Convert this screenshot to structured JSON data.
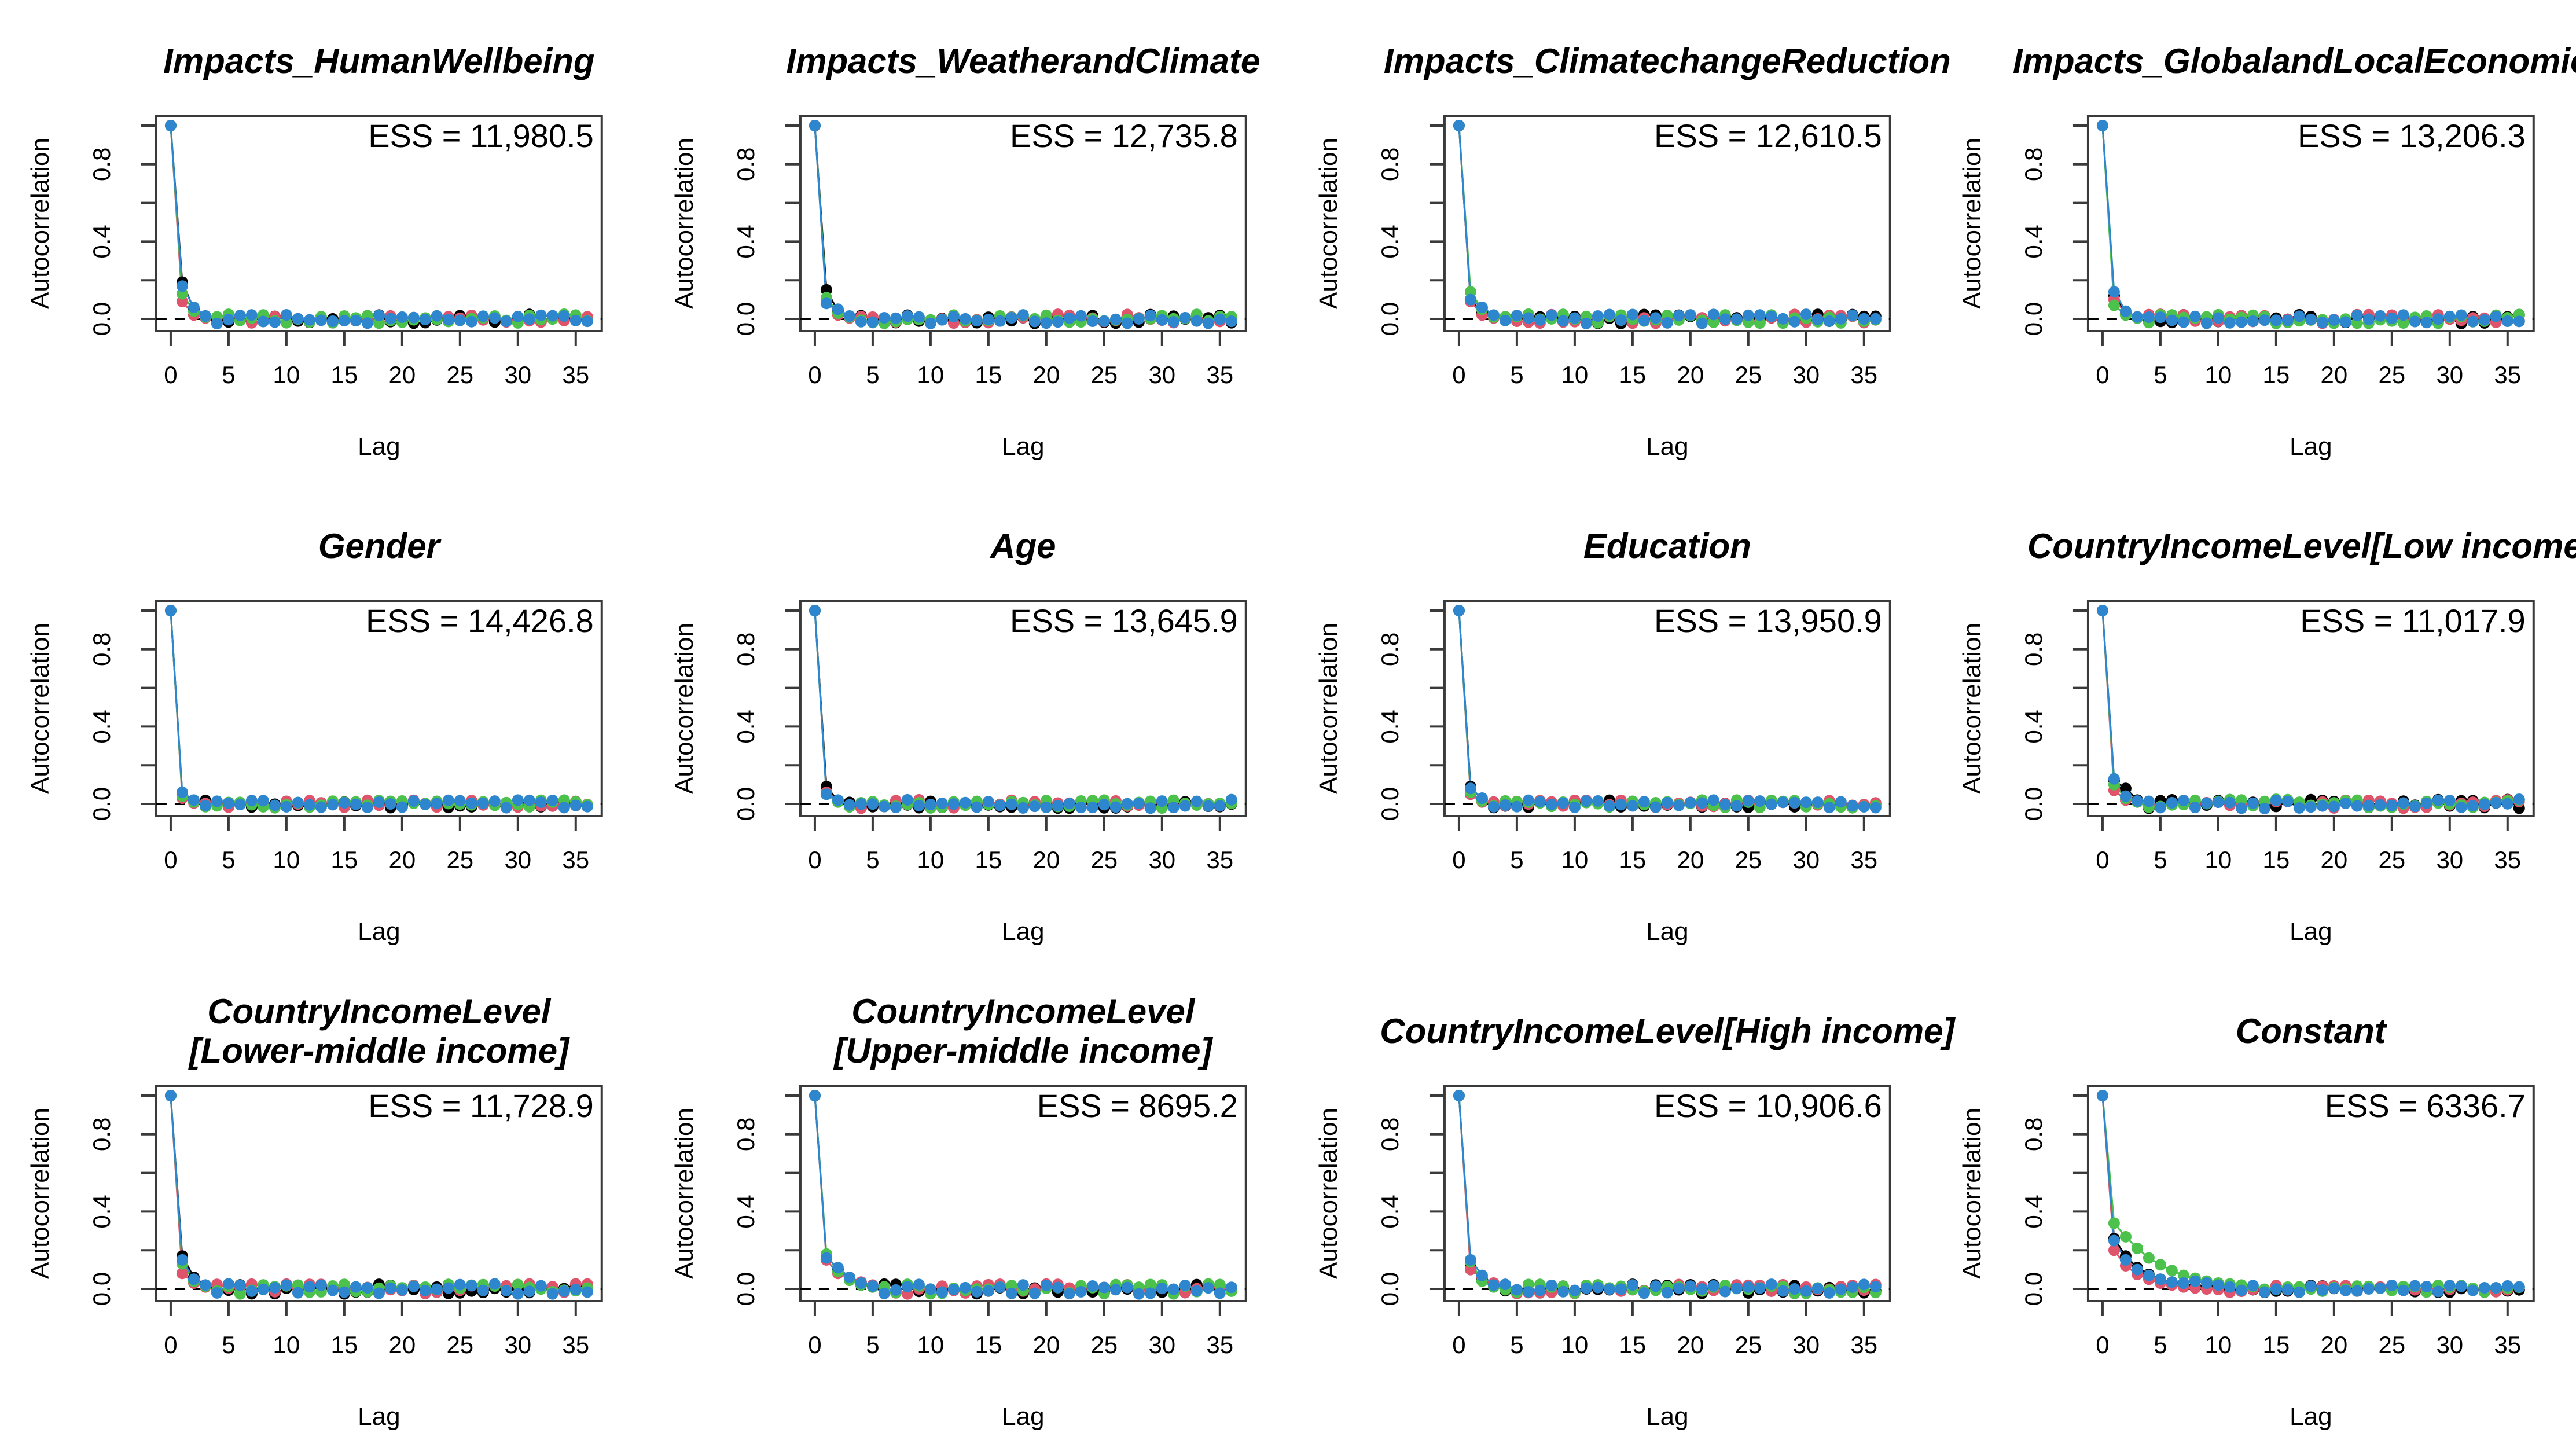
{
  "figure": {
    "kind": "MCMC autocorrelation diagnostics grid",
    "rows": 3,
    "cols": 4,
    "background": "#ffffff",
    "n_chains": 4
  },
  "style_colors": {
    "chain_black": "#000000",
    "chain_red": "#DF536B",
    "chain_green": "#4CC14C",
    "chain_blue": "#2E87CE",
    "axis_stroke": "#3a3a3a",
    "zero_line": "#000000",
    "text": "#000000"
  },
  "axes": {
    "ylabel": "Autocorrelation",
    "xlabel": "Lag",
    "x_tick_values": [
      0,
      5,
      10,
      15,
      20,
      25,
      30,
      35
    ],
    "x_tick_labels": [
      "0",
      "5",
      "10",
      "15",
      "20",
      "25",
      "30",
      "35"
    ],
    "y_ticks": [
      {
        "v": 1.0,
        "label": ""
      },
      {
        "v": 0.8,
        "label": "0.8"
      },
      {
        "v": 0.6,
        "label": ""
      },
      {
        "v": 0.4,
        "label": "0.4"
      },
      {
        "v": 0.2,
        "label": ""
      },
      {
        "v": 0.0,
        "label": "0.0"
      }
    ],
    "ylim": [
      -0.06,
      1.06
    ],
    "xlim": [
      0,
      36
    ],
    "zero_line": {
      "y": 0,
      "style": "dashed"
    },
    "grid": "off",
    "legend": "none"
  },
  "chart_data": [
    {
      "type": "scatter",
      "title_lines": [
        "Impacts_HumanWellbeing"
      ],
      "ess_label": "ESS = 11,980.5",
      "ess_value": 11980.5,
      "n_lags": 37,
      "tail_sd": 0.024,
      "seed": 11,
      "series": [
        {
          "name": "chain-1",
          "color": "chain_black",
          "head": [
            1,
            0.19,
            0.05,
            0.015
          ]
        },
        {
          "name": "chain-2",
          "color": "chain_red",
          "head": [
            1,
            0.09,
            0.02,
            0.005
          ]
        },
        {
          "name": "chain-3",
          "color": "chain_green",
          "head": [
            1,
            0.13,
            0.04,
            0.01
          ]
        },
        {
          "name": "chain-4",
          "color": "chain_blue",
          "head": [
            1,
            0.17,
            0.06,
            0.015
          ]
        }
      ]
    },
    {
      "type": "scatter",
      "title_lines": [
        "Impacts_WeatherandClimate"
      ],
      "ess_label": "ESS = 12,735.8",
      "ess_value": 12735.8,
      "n_lags": 37,
      "tail_sd": 0.024,
      "seed": 12,
      "series": [
        {
          "name": "chain-1",
          "color": "chain_black",
          "head": [
            1,
            0.15,
            0.04,
            0.01
          ]
        },
        {
          "name": "chain-2",
          "color": "chain_red",
          "head": [
            1,
            0.1,
            0.02,
            0.005
          ]
        },
        {
          "name": "chain-3",
          "color": "chain_green",
          "head": [
            1,
            0.11,
            0.03,
            0.01
          ]
        },
        {
          "name": "chain-4",
          "color": "chain_blue",
          "head": [
            1,
            0.08,
            0.05,
            0.015
          ]
        }
      ]
    },
    {
      "type": "scatter",
      "title_lines": [
        "Impacts_ClimatechangeReduction"
      ],
      "ess_label": "ESS = 12,610.5",
      "ess_value": 12610.5,
      "n_lags": 37,
      "tail_sd": 0.024,
      "seed": 13,
      "series": [
        {
          "name": "chain-1",
          "color": "chain_black",
          "head": [
            1,
            0.1,
            0.03,
            0.01
          ]
        },
        {
          "name": "chain-2",
          "color": "chain_red",
          "head": [
            1,
            0.09,
            0.02,
            0.005
          ]
        },
        {
          "name": "chain-3",
          "color": "chain_green",
          "head": [
            1,
            0.14,
            0.05,
            0.01
          ]
        },
        {
          "name": "chain-4",
          "color": "chain_blue",
          "head": [
            1,
            0.1,
            0.06,
            0.02
          ]
        }
      ]
    },
    {
      "type": "scatter",
      "title_lines": [
        "Impacts_GlobalandLocalEconomies"
      ],
      "ess_label": "ESS = 13,206.3",
      "ess_value": 13206.3,
      "n_lags": 37,
      "tail_sd": 0.024,
      "seed": 14,
      "series": [
        {
          "name": "chain-1",
          "color": "chain_black",
          "head": [
            1,
            0.12,
            0.03,
            0.005
          ]
        },
        {
          "name": "chain-2",
          "color": "chain_red",
          "head": [
            1,
            0.1,
            0.03,
            0.01
          ]
        },
        {
          "name": "chain-3",
          "color": "chain_green",
          "head": [
            1,
            0.07,
            0.02,
            0.005
          ]
        },
        {
          "name": "chain-4",
          "color": "chain_blue",
          "head": [
            1,
            0.14,
            0.04,
            0.01
          ]
        }
      ]
    },
    {
      "type": "scatter",
      "title_lines": [
        "Gender"
      ],
      "ess_label": "ESS = 14,426.8",
      "ess_value": 14426.8,
      "n_lags": 37,
      "tail_sd": 0.02,
      "seed": 15,
      "series": [
        {
          "name": "chain-1",
          "color": "chain_black",
          "head": [
            1,
            0.05,
            0.01
          ]
        },
        {
          "name": "chain-2",
          "color": "chain_red",
          "head": [
            1,
            0.03,
            0.005
          ]
        },
        {
          "name": "chain-3",
          "color": "chain_green",
          "head": [
            1,
            0.04,
            0.01
          ]
        },
        {
          "name": "chain-4",
          "color": "chain_blue",
          "head": [
            1,
            0.06,
            0.02
          ]
        }
      ]
    },
    {
      "type": "scatter",
      "title_lines": [
        "Age"
      ],
      "ess_label": "ESS = 13,645.9",
      "ess_value": 13645.9,
      "n_lags": 37,
      "tail_sd": 0.022,
      "seed": 16,
      "series": [
        {
          "name": "chain-1",
          "color": "chain_black",
          "head": [
            1,
            0.09,
            0.015
          ]
        },
        {
          "name": "chain-2",
          "color": "chain_red",
          "head": [
            1,
            0.06,
            0.01
          ]
        },
        {
          "name": "chain-3",
          "color": "chain_green",
          "head": [
            1,
            0.05,
            0.01
          ]
        },
        {
          "name": "chain-4",
          "color": "chain_blue",
          "head": [
            1,
            0.05,
            0.02
          ]
        }
      ]
    },
    {
      "type": "scatter",
      "title_lines": [
        "Education"
      ],
      "ess_label": "ESS = 13,950.9",
      "ess_value": 13950.9,
      "n_lags": 37,
      "tail_sd": 0.02,
      "seed": 17,
      "series": [
        {
          "name": "chain-1",
          "color": "chain_black",
          "head": [
            1,
            0.09,
            0.02
          ]
        },
        {
          "name": "chain-2",
          "color": "chain_red",
          "head": [
            1,
            0.05,
            0.01
          ]
        },
        {
          "name": "chain-3",
          "color": "chain_green",
          "head": [
            1,
            0.06,
            0.015
          ]
        },
        {
          "name": "chain-4",
          "color": "chain_blue",
          "head": [
            1,
            0.08,
            0.03
          ]
        }
      ]
    },
    {
      "type": "scatter",
      "title_lines": [
        "CountryIncomeLevel[Low income]"
      ],
      "ess_label": "ESS = 11,017.9",
      "ess_value": 11017.9,
      "n_lags": 37,
      "tail_sd": 0.024,
      "seed": 18,
      "series": [
        {
          "name": "chain-1",
          "color": "chain_black",
          "head": [
            1,
            0.12,
            0.08,
            0.02
          ]
        },
        {
          "name": "chain-2",
          "color": "chain_red",
          "head": [
            1,
            0.07,
            0.02,
            0.01
          ]
        },
        {
          "name": "chain-3",
          "color": "chain_green",
          "head": [
            1,
            0.1,
            0.03,
            0.01
          ]
        },
        {
          "name": "chain-4",
          "color": "chain_blue",
          "head": [
            1,
            0.13,
            0.04,
            0.015
          ]
        }
      ]
    },
    {
      "type": "scatter",
      "title_lines": [
        "CountryIncomeLevel",
        "[Lower-middle income]"
      ],
      "ess_label": "ESS = 11,728.9",
      "ess_value": 11728.9,
      "n_lags": 37,
      "tail_sd": 0.026,
      "seed": 19,
      "series": [
        {
          "name": "chain-1",
          "color": "chain_black",
          "head": [
            1,
            0.17,
            0.06,
            0.02
          ]
        },
        {
          "name": "chain-2",
          "color": "chain_red",
          "head": [
            1,
            0.08,
            0.03,
            0.01
          ]
        },
        {
          "name": "chain-3",
          "color": "chain_green",
          "head": [
            1,
            0.13,
            0.04,
            0.015
          ]
        },
        {
          "name": "chain-4",
          "color": "chain_blue",
          "head": [
            1,
            0.15,
            0.05,
            0.02
          ]
        }
      ]
    },
    {
      "type": "scatter",
      "title_lines": [
        "CountryIncomeLevel",
        "[Upper-middle income]"
      ],
      "ess_label": "ESS = 8695.2",
      "ess_value": 8695.2,
      "n_lags": 37,
      "tail_sd": 0.026,
      "seed": 20,
      "series": [
        {
          "name": "chain-1",
          "color": "chain_black",
          "head": [
            1,
            0.17,
            0.1,
            0.05,
            0.02,
            0.01
          ]
        },
        {
          "name": "chain-2",
          "color": "chain_red",
          "head": [
            1,
            0.15,
            0.08,
            0.06,
            0.035,
            0.02
          ]
        },
        {
          "name": "chain-3",
          "color": "chain_green",
          "head": [
            1,
            0.18,
            0.09,
            0.045,
            0.02,
            0.01
          ]
        },
        {
          "name": "chain-4",
          "color": "chain_blue",
          "head": [
            1,
            0.16,
            0.11,
            0.06,
            0.03,
            0.015
          ]
        }
      ]
    },
    {
      "type": "scatter",
      "title_lines": [
        "CountryIncomeLevel[High income]"
      ],
      "ess_label": "ESS = 10,906.6",
      "ess_value": 10906.6,
      "n_lags": 37,
      "tail_sd": 0.024,
      "seed": 21,
      "series": [
        {
          "name": "chain-1",
          "color": "chain_black",
          "head": [
            1,
            0.13,
            0.05,
            0.015
          ]
        },
        {
          "name": "chain-2",
          "color": "chain_red",
          "head": [
            1,
            0.1,
            0.06,
            0.03
          ]
        },
        {
          "name": "chain-3",
          "color": "chain_green",
          "head": [
            1,
            0.14,
            0.04,
            0.01
          ]
        },
        {
          "name": "chain-4",
          "color": "chain_blue",
          "head": [
            1,
            0.15,
            0.07,
            0.02
          ]
        }
      ]
    },
    {
      "type": "scatter",
      "title_lines": [
        "Constant"
      ],
      "ess_label": "ESS = 6336.7",
      "ess_value": 6336.7,
      "n_lags": 37,
      "tail_sd": 0.018,
      "seed": 22,
      "series": [
        {
          "name": "chain-1",
          "color": "chain_black",
          "head": [
            1,
            0.26,
            0.17,
            0.11,
            0.075,
            0.05,
            0.035,
            0.025,
            0.015,
            0.01
          ]
        },
        {
          "name": "chain-2",
          "color": "chain_red",
          "head": [
            1,
            0.2,
            0.12,
            0.075,
            0.05,
            0.03,
            0.02,
            0.01,
            0.005,
            0.0
          ]
        },
        {
          "name": "chain-3",
          "color": "chain_green",
          "head": [
            1,
            0.34,
            0.27,
            0.21,
            0.16,
            0.125,
            0.095,
            0.07,
            0.055,
            0.04,
            0.03,
            0.025,
            0.02
          ]
        },
        {
          "name": "chain-4",
          "color": "chain_blue",
          "head": [
            1,
            0.25,
            0.15,
            0.1,
            0.07,
            0.05,
            0.035,
            0.03,
            0.04,
            0.03,
            0.02,
            0.01
          ]
        }
      ]
    }
  ]
}
